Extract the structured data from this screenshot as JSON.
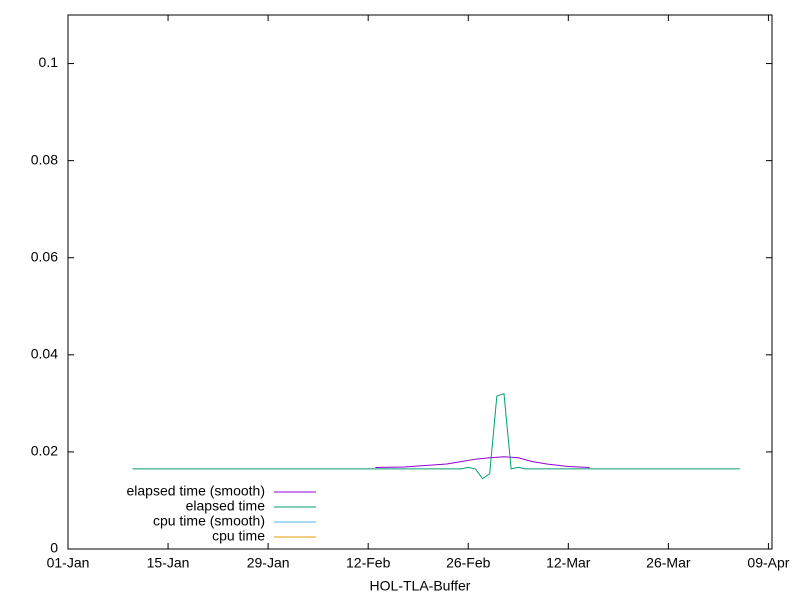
{
  "chart_data": {
    "type": "line",
    "xlabel": "HOL-TLA-Buffer",
    "xlim": [
      0,
      98.5
    ],
    "ylim": [
      0,
      0.11
    ],
    "xticks": [
      {
        "value": 0,
        "label": "01-Jan"
      },
      {
        "value": 14,
        "label": "15-Jan"
      },
      {
        "value": 28,
        "label": "29-Jan"
      },
      {
        "value": 42,
        "label": "12-Feb"
      },
      {
        "value": 56,
        "label": "26-Feb"
      },
      {
        "value": 70,
        "label": "12-Mar"
      },
      {
        "value": 84,
        "label": "26-Mar"
      },
      {
        "value": 98,
        "label": "09-Apr"
      }
    ],
    "yticks": [
      0,
      0.02,
      0.04,
      0.06,
      0.08,
      0.1
    ],
    "legend": "bottom-left",
    "series": [
      {
        "name": "elapsed time (smooth)",
        "color": "#9400d3",
        "x": [
          43,
          47,
          50,
          53,
          55,
          57,
          59,
          61,
          63,
          65,
          67,
          70,
          73
        ],
        "values": [
          0.0168,
          0.0169,
          0.0172,
          0.0175,
          0.018,
          0.0185,
          0.0188,
          0.019,
          0.0188,
          0.018,
          0.0175,
          0.017,
          0.0168
        ]
      },
      {
        "name": "elapsed time",
        "color": "#009e73",
        "x": [
          9,
          20,
          30,
          40,
          50,
          55,
          56,
          57,
          58,
          59,
          60,
          61,
          62,
          63,
          64,
          65,
          70,
          80,
          94
        ],
        "values": [
          0.0165,
          0.0165,
          0.0165,
          0.0165,
          0.0165,
          0.0165,
          0.0168,
          0.0165,
          0.0145,
          0.0155,
          0.0315,
          0.032,
          0.0165,
          0.0168,
          0.0165,
          0.0165,
          0.0165,
          0.0165,
          0.0165
        ]
      },
      {
        "name": "cpu time (smooth)",
        "color": "#56b4e9",
        "x": [],
        "values": []
      },
      {
        "name": "cpu time",
        "color": "#e69f00",
        "x": [],
        "values": []
      }
    ]
  }
}
